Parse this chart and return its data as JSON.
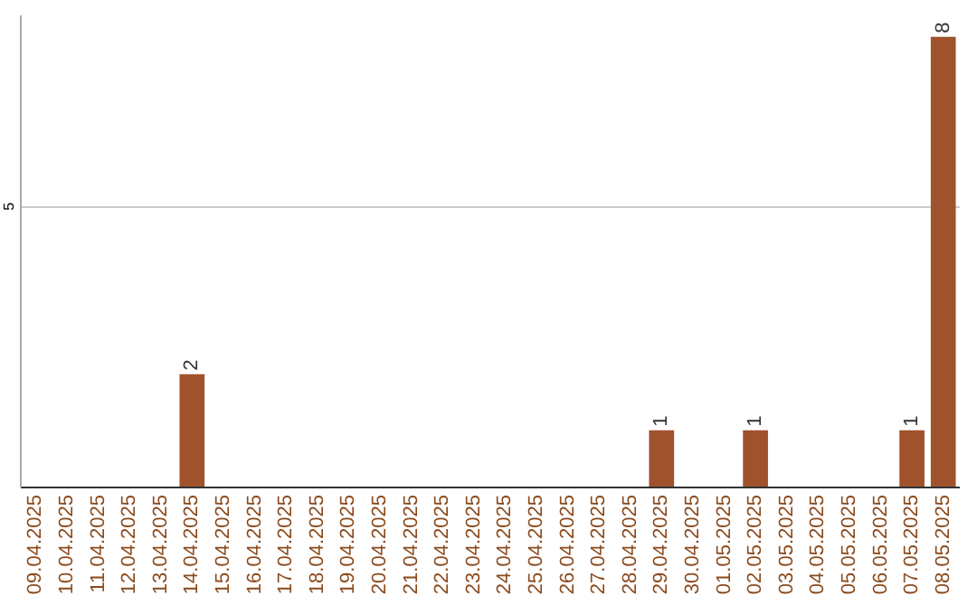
{
  "chart_data": {
    "type": "bar",
    "categories": [
      "09.04.2025",
      "10.04.2025",
      "11.04.2025",
      "12.04.2025",
      "13.04.2025",
      "14.04.2025",
      "15.04.2025",
      "16.04.2025",
      "17.04.2025",
      "18.04.2025",
      "19.04.2025",
      "20.04.2025",
      "21.04.2025",
      "22.04.2025",
      "23.04.2025",
      "24.04.2025",
      "25.04.2025",
      "26.04.2025",
      "27.04.2025",
      "28.04.2025",
      "29.04.2025",
      "30.04.2025",
      "01.05.2025",
      "02.05.2025",
      "03.05.2025",
      "04.05.2025",
      "05.05.2025",
      "06.05.2025",
      "07.05.2025",
      "08.05.2025"
    ],
    "values": [
      0,
      0,
      0,
      0,
      0,
      2,
      0,
      0,
      0,
      0,
      0,
      0,
      0,
      0,
      0,
      0,
      0,
      0,
      0,
      0,
      1,
      0,
      0,
      1,
      0,
      0,
      0,
      0,
      1,
      8
    ],
    "value_labels": [
      null,
      null,
      null,
      null,
      null,
      "2",
      null,
      null,
      null,
      null,
      null,
      null,
      null,
      null,
      null,
      null,
      null,
      null,
      null,
      null,
      "1",
      null,
      null,
      "1",
      null,
      null,
      null,
      null,
      "1",
      "8"
    ],
    "color": "#a0522d",
    "ylim": [
      0,
      8.4
    ],
    "yticks": [
      5
    ],
    "grid": "y"
  }
}
